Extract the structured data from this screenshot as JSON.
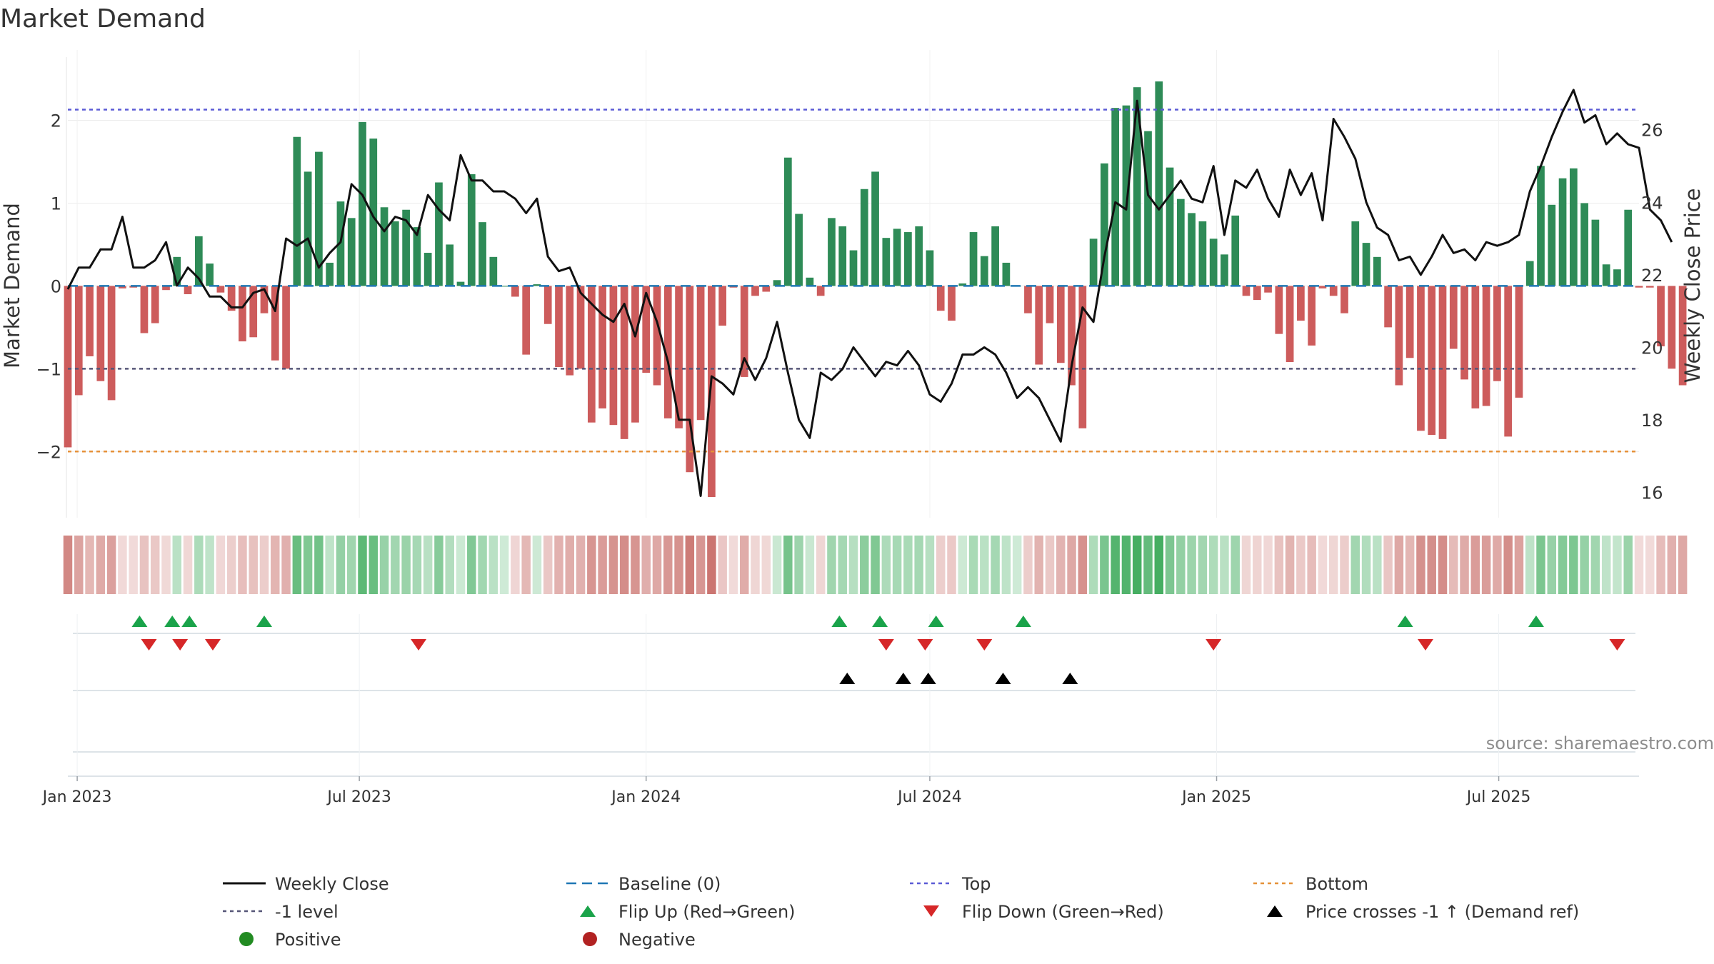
{
  "title": "Market Demand",
  "y_left_label": "Market Demand",
  "y_right_label": "Weekly Close Price",
  "source_note": "source: sharemaestro.com",
  "colors": {
    "positive": "#2e8b57",
    "negative": "#cd5c5c",
    "close": "#111111",
    "baseline": "#1f77b4",
    "top": "#5b5bd6",
    "bottom": "#e69138",
    "minus_one": "#555577",
    "flip_up": "#1aa34a",
    "flip_down": "#d62728",
    "cross": "#000000",
    "legend_positive": "#228b22",
    "legend_negative": "#b22222"
  },
  "legend": [
    {
      "label": "Weekly Close",
      "kind": "line"
    },
    {
      "label": "Baseline (0)",
      "kind": "baseline"
    },
    {
      "label": "Top",
      "kind": "top"
    },
    {
      "label": "Bottom",
      "kind": "bottom"
    },
    {
      "label": "-1 level",
      "kind": "minus_one"
    },
    {
      "label": "Flip Up (Red→Green)",
      "kind": "flip_up"
    },
    {
      "label": "Flip Down (Green→Red)",
      "kind": "flip_down"
    },
    {
      "label": "Price crosses -1 ↑ (Demand ref)",
      "kind": "cross"
    },
    {
      "label": "Positive",
      "kind": "positive"
    },
    {
      "label": "Negative",
      "kind": "negative"
    }
  ],
  "chart_data": {
    "type": "bar+line",
    "title": "Market Demand",
    "x_axis": {
      "start": "2022-12-26",
      "end": "2025-09-29",
      "tick_labels": [
        "Jan 2023",
        "Jul 2023",
        "Jan 2024",
        "Jul 2024",
        "Jan 2025",
        "Jul 2025"
      ],
      "tick_dates": [
        "2023-01-01",
        "2023-07-01",
        "2024-01-01",
        "2024-07-01",
        "2025-01-01",
        "2025-07-01"
      ]
    },
    "y_left": {
      "label": "Market Demand",
      "range": [
        -2.8,
        2.85
      ],
      "ticks": [
        -2,
        -1,
        0,
        1,
        2
      ],
      "tick_labels": [
        "−2",
        "−1",
        "0",
        "1",
        "2"
      ]
    },
    "y_right": {
      "label": "Weekly Close Price",
      "range": [
        15.3,
        28.2
      ],
      "ticks": [
        16,
        18,
        20,
        22,
        24,
        26
      ],
      "tick_labels": [
        "16",
        "18",
        "20",
        "22",
        "24",
        "26"
      ]
    },
    "reference_lines": {
      "baseline": 0,
      "top": 2.13,
      "bottom": -2.0,
      "minus_one": -1.0
    },
    "demand": [
      -1.95,
      -1.32,
      -0.85,
      -1.15,
      -1.38,
      -0.03,
      -0.02,
      -0.57,
      -0.45,
      -0.05,
      0.35,
      -0.1,
      0.6,
      0.27,
      -0.08,
      -0.3,
      -0.67,
      -0.62,
      -0.33,
      -0.9,
      -1.0,
      1.8,
      1.38,
      1.62,
      0.28,
      1.02,
      0.82,
      1.98,
      1.78,
      0.95,
      0.78,
      0.92,
      0.71,
      0.4,
      1.25,
      0.5,
      0.05,
      1.35,
      0.77,
      0.35,
      0.0,
      -0.13,
      -0.83,
      0.02,
      -0.46,
      -0.98,
      -1.08,
      -1.0,
      -1.65,
      -1.48,
      -1.68,
      -1.85,
      -1.65,
      -1.05,
      -1.2,
      -1.6,
      -1.72,
      -2.25,
      -1.62,
      -2.55,
      -0.48,
      -0.02,
      -1.1,
      -0.12,
      -0.07,
      0.07,
      1.55,
      0.87,
      0.1,
      -0.12,
      0.82,
      0.72,
      0.43,
      1.17,
      1.38,
      0.58,
      0.69,
      0.65,
      0.72,
      0.43,
      -0.3,
      -0.42,
      0.03,
      0.65,
      0.36,
      0.72,
      0.28,
      0.0,
      -0.33,
      -0.95,
      -0.45,
      -0.93,
      -1.2,
      -1.72,
      0.57,
      1.48,
      2.15,
      2.18,
      2.4,
      1.87,
      2.47,
      1.43,
      1.05,
      0.88,
      0.78,
      0.57,
      0.38,
      0.85,
      -0.12,
      -0.17,
      -0.08,
      -0.58,
      -0.92,
      -0.42,
      -0.72,
      -0.03,
      -0.12,
      -0.33,
      0.78,
      0.52,
      0.35,
      -0.5,
      -1.2,
      -0.87,
      -1.75,
      -1.8,
      -1.85,
      -0.76,
      -1.13,
      -1.48,
      -1.45,
      -1.15,
      -1.82,
      -1.35,
      0.3,
      1.45,
      0.98,
      1.3,
      1.42,
      1.0,
      0.8,
      0.26,
      0.2,
      0.92,
      -0.02,
      -0.02,
      -0.73,
      -1.0,
      -1.2
    ],
    "close": [
      21.6,
      22.2,
      22.2,
      22.7,
      22.7,
      23.6,
      22.2,
      22.2,
      22.4,
      22.9,
      21.7,
      22.2,
      21.9,
      21.4,
      21.4,
      21.1,
      21.1,
      21.5,
      21.6,
      21.0,
      23.0,
      22.8,
      23.0,
      22.2,
      22.6,
      22.9,
      24.5,
      24.2,
      23.6,
      23.2,
      23.6,
      23.5,
      23.1,
      24.2,
      23.8,
      23.5,
      25.3,
      24.6,
      24.6,
      24.3,
      24.3,
      24.1,
      23.7,
      24.1,
      22.5,
      22.1,
      22.2,
      21.5,
      21.2,
      20.9,
      20.7,
      21.2,
      20.3,
      21.5,
      20.7,
      19.6,
      18.0,
      18.0,
      15.9,
      19.2,
      19.0,
      18.7,
      19.7,
      19.1,
      19.7,
      20.7,
      19.3,
      18.0,
      17.5,
      19.3,
      19.1,
      19.4,
      20.0,
      19.6,
      19.2,
      19.6,
      19.5,
      19.9,
      19.5,
      18.7,
      18.5,
      19.0,
      19.8,
      19.8,
      20.0,
      19.8,
      19.3,
      18.6,
      18.9,
      18.6,
      18.0,
      17.4,
      19.5,
      21.1,
      20.7,
      22.5,
      24.0,
      23.8,
      26.8,
      24.2,
      23.8,
      24.2,
      24.6,
      24.1,
      24.0,
      25.0,
      23.1,
      24.6,
      24.4,
      24.9,
      24.1,
      23.6,
      24.9,
      24.2,
      24.8,
      23.5,
      26.3,
      25.8,
      25.2,
      24.0,
      23.3,
      23.1,
      22.4,
      22.5,
      22.0,
      22.5,
      23.1,
      22.6,
      22.7,
      22.4,
      22.9,
      22.8,
      22.9,
      23.1,
      24.3,
      25.0,
      25.8,
      26.5,
      27.1,
      26.2,
      26.4,
      25.6,
      25.9,
      25.6,
      25.5,
      23.8,
      23.5,
      22.9
    ],
    "heat_strip": "weekly demand encoded as green (positive) / red (negative) intensity",
    "flip_up_dates": [
      "2023-02-10",
      "2023-03-03",
      "2023-03-14",
      "2023-05-01",
      "2024-05-04",
      "2024-05-30",
      "2024-07-05",
      "2024-08-30",
      "2025-05-02",
      "2025-07-25"
    ],
    "flip_down_dates": [
      "2023-02-16",
      "2023-03-08",
      "2023-03-29",
      "2023-08-08",
      "2024-06-03",
      "2024-06-28",
      "2024-08-05",
      "2024-12-30",
      "2025-05-15",
      "2025-09-15"
    ],
    "price_cross_dates": [
      "2024-05-09",
      "2024-06-14",
      "2024-06-30",
      "2024-08-17",
      "2024-09-29"
    ]
  }
}
